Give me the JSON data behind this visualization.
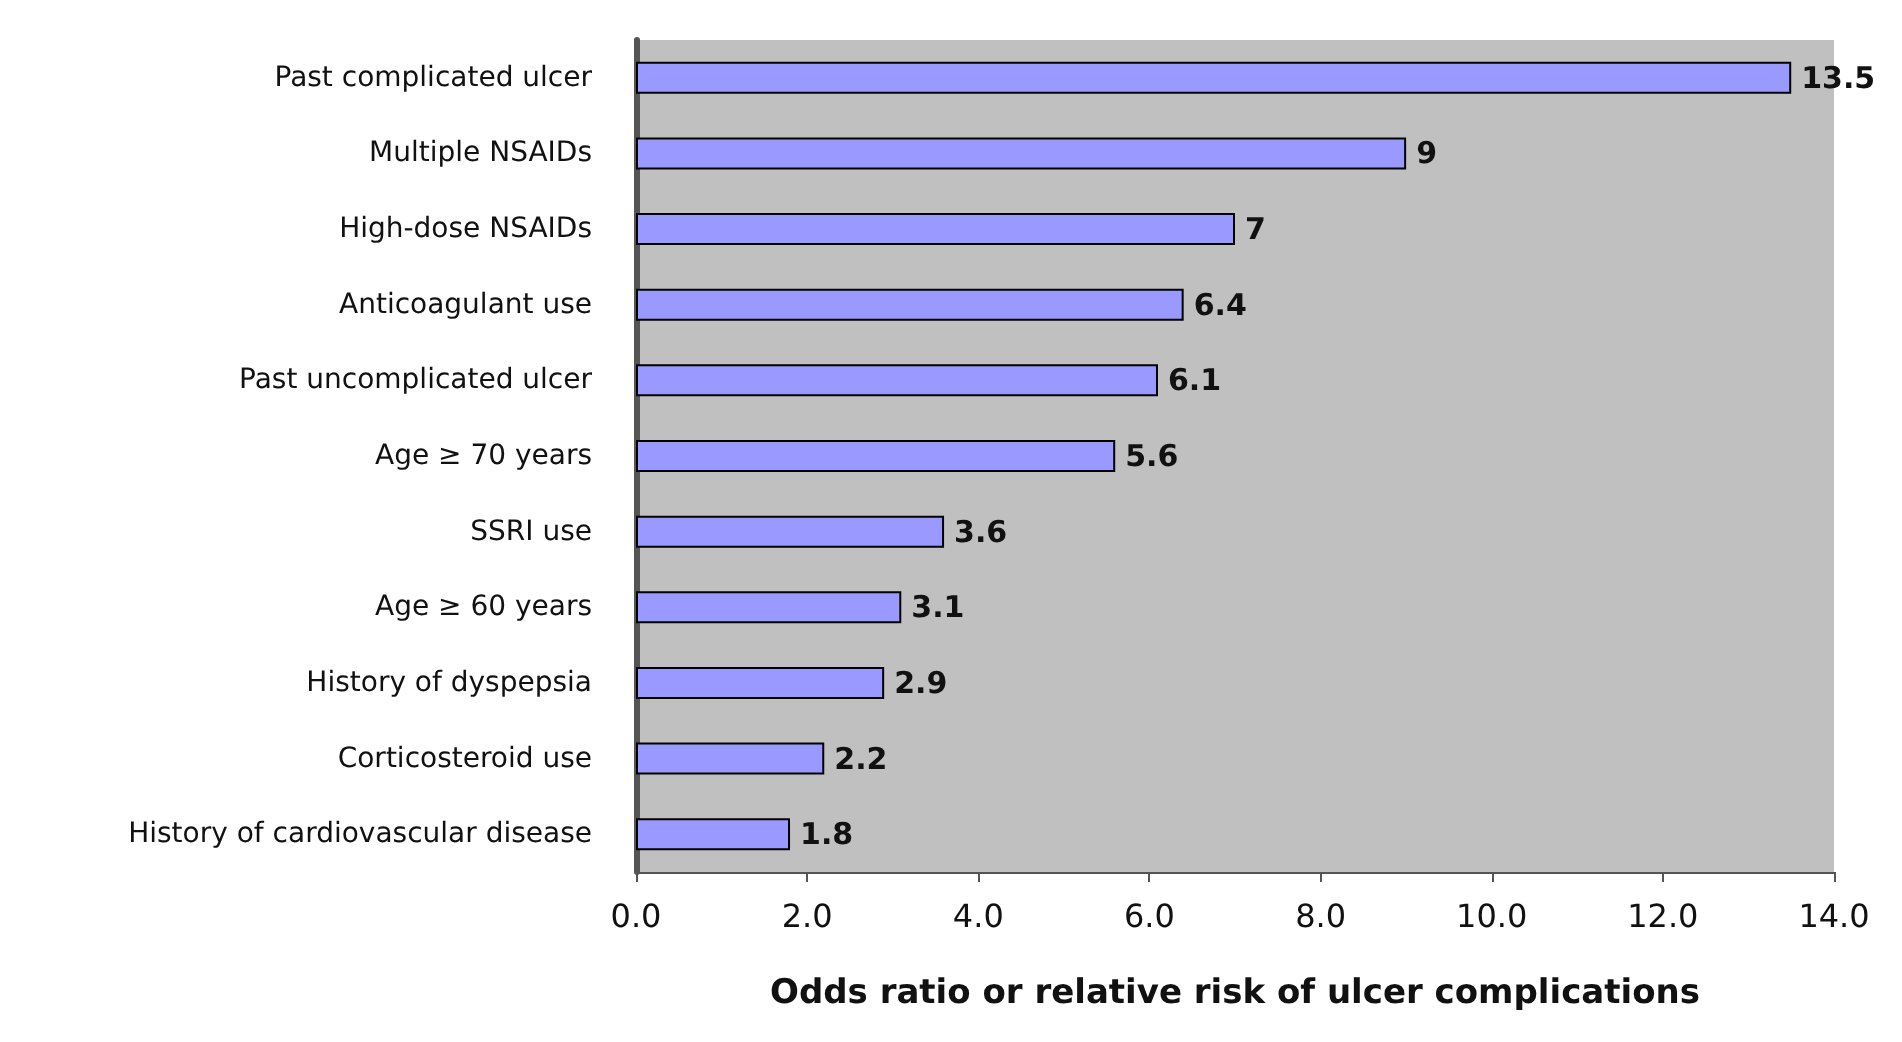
{
  "chart_data": {
    "type": "bar",
    "orientation": "horizontal",
    "xlabel": "Odds ratio or relative risk of ulcer complications",
    "categories": [
      "Past complicated ulcer",
      "Multiple NSAIDs",
      "High-dose NSAIDs",
      "Anticoagulant use",
      "Past uncomplicated ulcer",
      "Age ≥ 70 years",
      "SSRI use",
      "Age ≥ 60 years",
      "History of dyspepsia",
      "Corticosteroid use",
      "History of cardiovascular disease"
    ],
    "values": [
      13.5,
      9,
      7,
      6.4,
      6.1,
      5.6,
      3.6,
      3.1,
      2.9,
      2.2,
      1.8
    ],
    "color": "#9999ff",
    "data_labels": true,
    "grid": false,
    "xlim": [
      0,
      14
    ],
    "xticks": [
      {
        "value": 0,
        "label": "0.0"
      },
      {
        "value": 2,
        "label": "2.0"
      },
      {
        "value": 4,
        "label": "4.0"
      },
      {
        "value": 6,
        "label": "6.0"
      },
      {
        "value": 8,
        "label": "8.0"
      },
      {
        "value": 10,
        "label": "10.0"
      },
      {
        "value": 12,
        "label": "12.0"
      },
      {
        "value": 14,
        "label": "14.0"
      }
    ]
  }
}
